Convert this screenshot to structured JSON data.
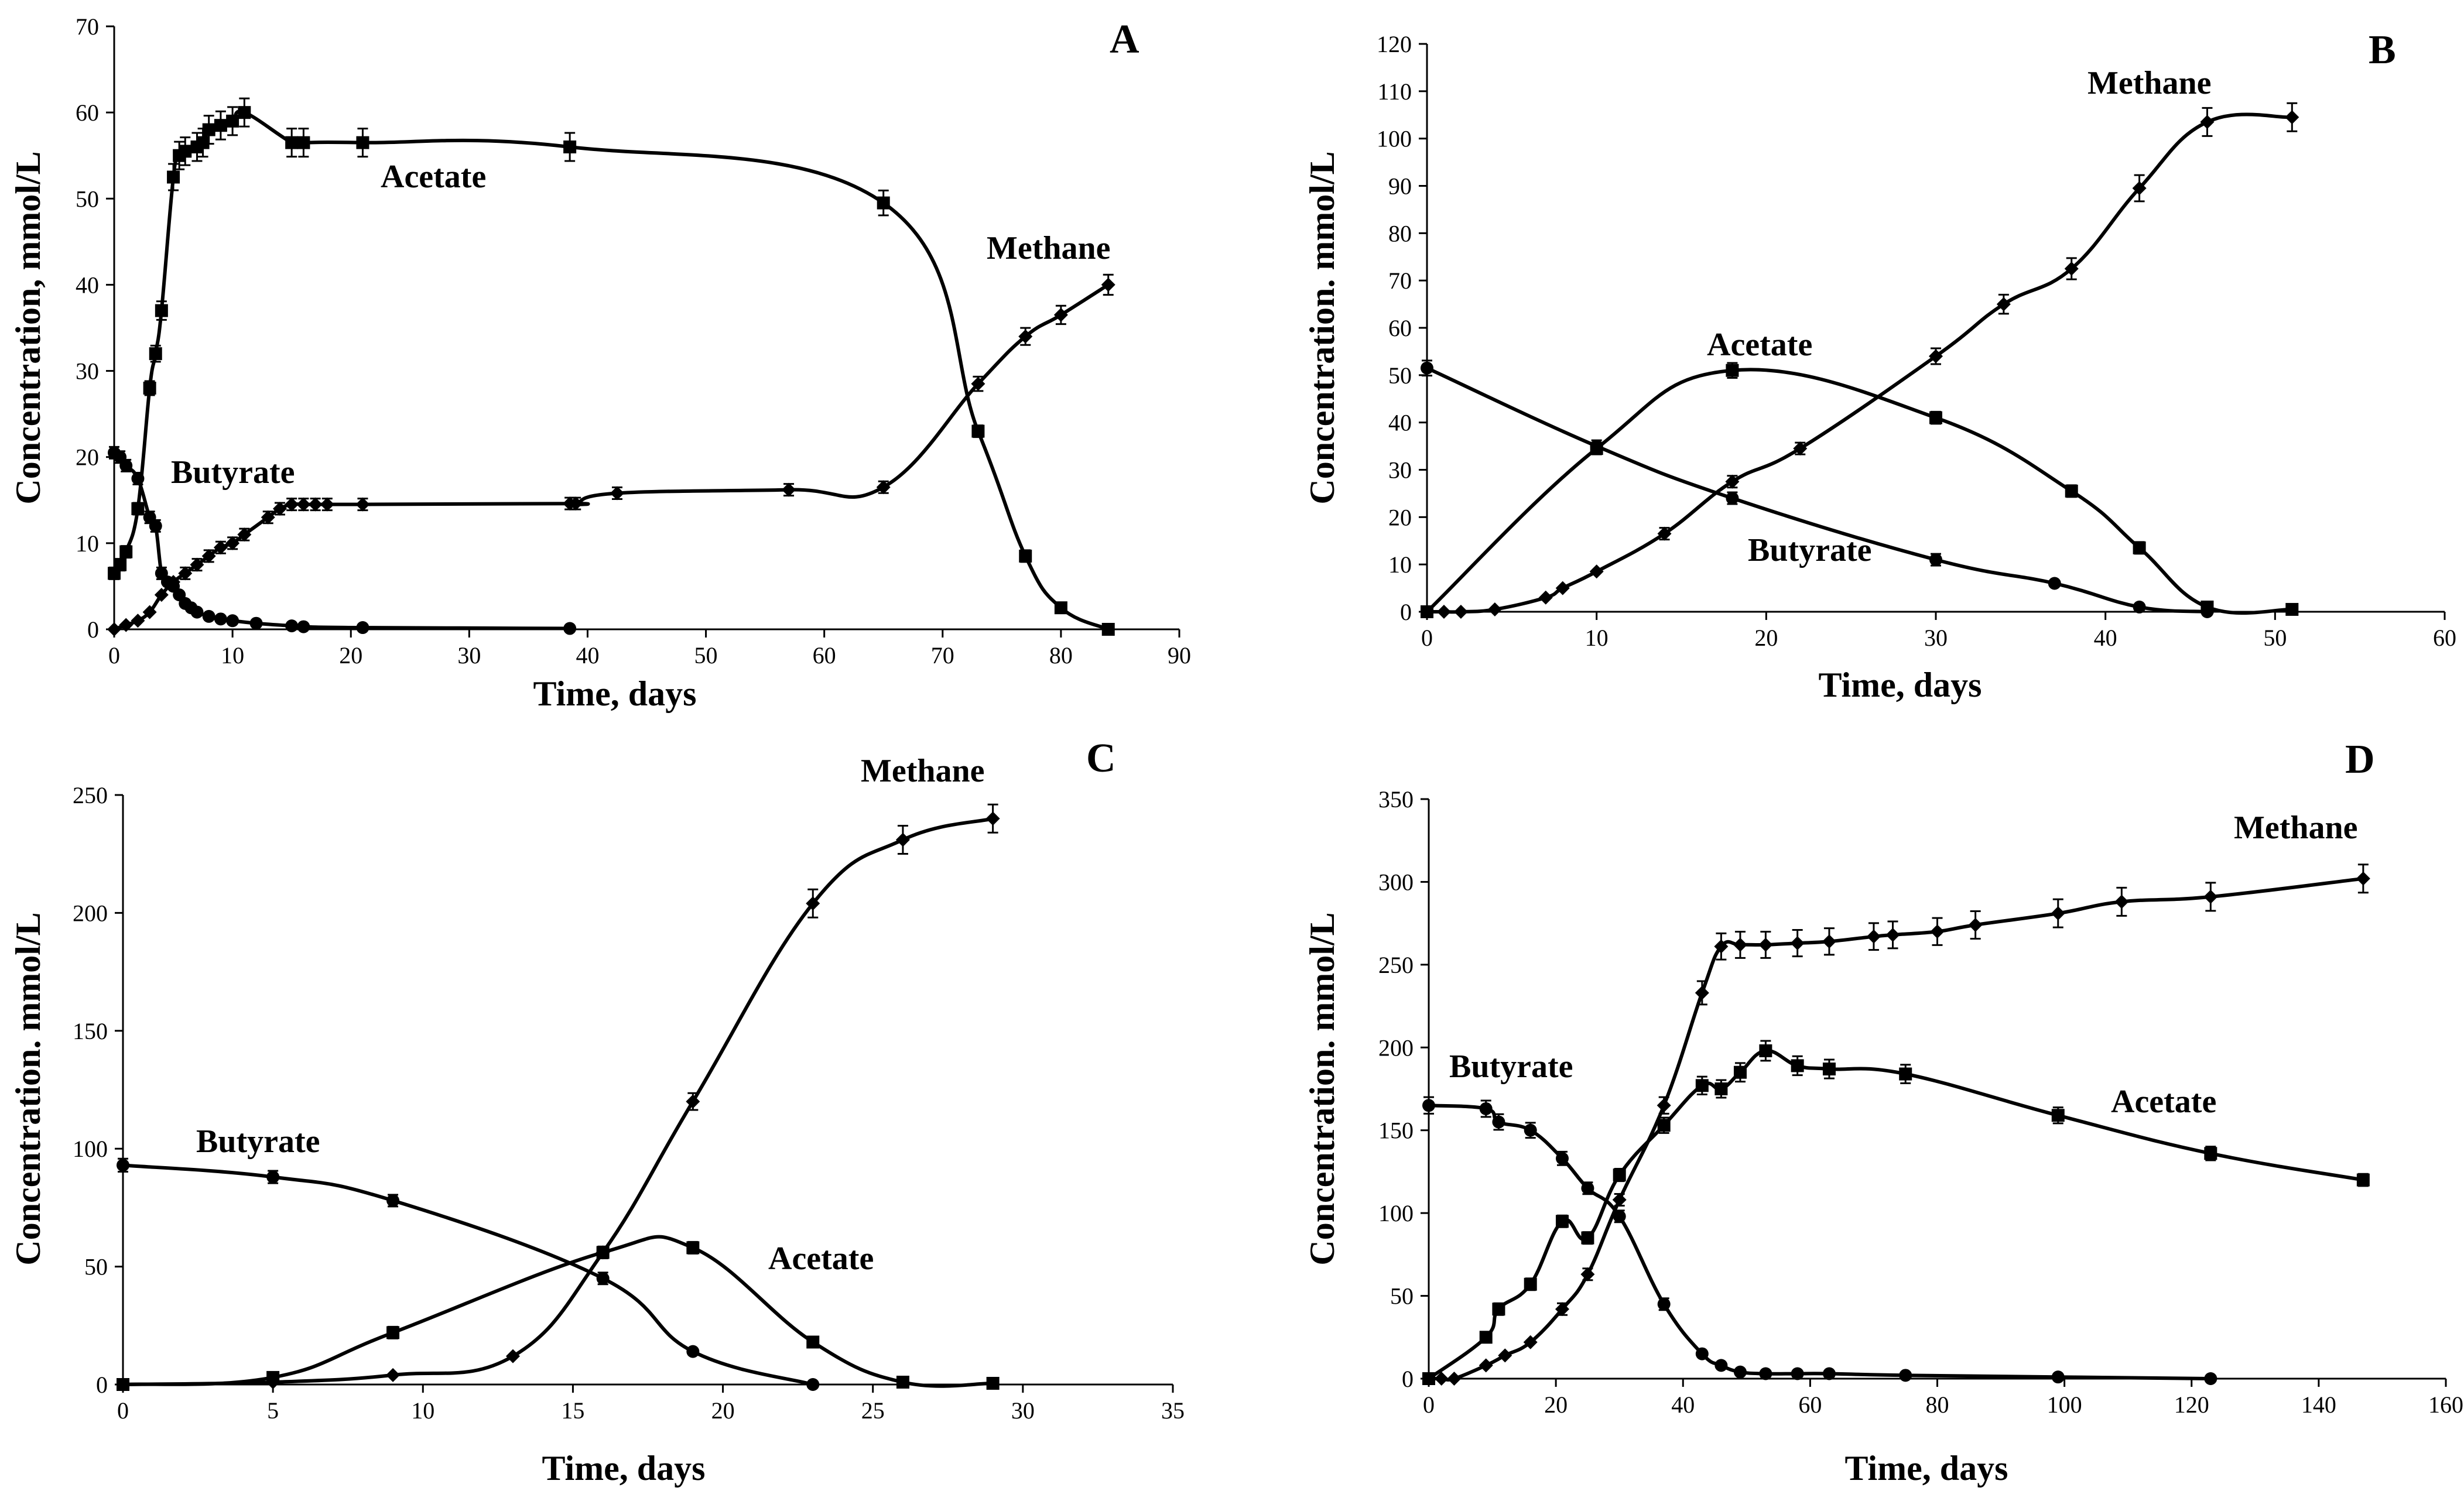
{
  "chart_data": [
    {
      "type": "line",
      "panel": "A",
      "xlabel": "Time, days",
      "ylabel": "Concentration, mmol/L",
      "xlim": [
        0,
        90
      ],
      "ylim": [
        0,
        70
      ],
      "xticks": [
        0,
        10,
        20,
        30,
        40,
        50,
        60,
        70,
        80,
        90
      ],
      "yticks": [
        0,
        10,
        20,
        30,
        40,
        50,
        60,
        70
      ],
      "series": [
        {
          "name": "Acetate",
          "marker": "square",
          "x": [
            0,
            0.5,
            1,
            2,
            3,
            3.5,
            4,
            5,
            5.5,
            6,
            7,
            7.5,
            8,
            9,
            10,
            11,
            15,
            16,
            21,
            38.5,
            65,
            73,
            77,
            80,
            84
          ],
          "y": [
            6.5,
            7.5,
            9,
            14,
            28,
            32,
            37,
            52.5,
            55,
            55.5,
            56,
            56.5,
            58,
            58.5,
            59,
            60,
            56.5,
            56.5,
            56.5,
            56,
            49.5,
            23,
            8.5,
            2.5,
            0
          ]
        },
        {
          "name": "Butyrate",
          "marker": "circle",
          "x": [
            0,
            0.5,
            1,
            2,
            3,
            3.5,
            4,
            4.5,
            5,
            5.5,
            6,
            6.5,
            7,
            8,
            9,
            10,
            12,
            15,
            16,
            21,
            38.5
          ],
          "y": [
            20.5,
            20,
            19,
            17.5,
            13,
            12,
            6.5,
            5.5,
            5,
            4,
            3,
            2.5,
            2,
            1.5,
            1.2,
            1,
            0.7,
            0.4,
            0.3,
            0.2,
            0.1
          ]
        },
        {
          "name": "Methane",
          "marker": "diamond",
          "x": [
            0,
            1,
            2,
            3,
            4,
            5,
            6,
            7,
            8,
            9,
            10,
            11,
            13,
            14,
            15,
            16,
            17,
            18,
            21,
            38.5,
            39,
            42.5,
            57,
            65,
            73,
            77,
            80,
            84
          ],
          "y": [
            0,
            0.5,
            1,
            2,
            4,
            5.5,
            6.5,
            7.5,
            8.5,
            9.5,
            10,
            11,
            13,
            14,
            14.5,
            14.5,
            14.5,
            14.5,
            14.5,
            14.6,
            14.6,
            15.8,
            16.2,
            16.5,
            28.5,
            34,
            36.5,
            40
          ]
        }
      ],
      "labels": [
        "A",
        "Acetate",
        "Butyrate",
        "Methane"
      ]
    },
    {
      "type": "line",
      "panel": "B",
      "xlabel": "Time, days",
      "ylabel": "Concentration. mmol/L",
      "xlim": [
        0,
        60
      ],
      "ylim": [
        0,
        120
      ],
      "xticks": [
        0,
        10,
        20,
        30,
        40,
        50,
        60
      ],
      "yticks": [
        0,
        10,
        20,
        30,
        40,
        50,
        60,
        70,
        80,
        90,
        100,
        110,
        120
      ],
      "series": [
        {
          "name": "Acetate",
          "marker": "square",
          "x": [
            0,
            10,
            18,
            30,
            38,
            42,
            46,
            51
          ],
          "y": [
            0,
            34.5,
            51,
            41,
            25.5,
            13.5,
            1,
            0.5
          ]
        },
        {
          "name": "Butyrate",
          "marker": "circle",
          "x": [
            0,
            10,
            18,
            30,
            37,
            42,
            46
          ],
          "y": [
            51.5,
            35,
            24,
            11,
            6,
            1,
            0
          ]
        },
        {
          "name": "Methane",
          "marker": "diamond",
          "x": [
            0,
            1,
            2,
            4,
            7,
            8,
            10,
            14,
            18,
            22,
            30,
            34,
            38,
            42,
            46,
            51
          ],
          "y": [
            0,
            0,
            0,
            0.5,
            3,
            5,
            8.5,
            16.5,
            27.5,
            34.5,
            54,
            65,
            72.5,
            89.5,
            103.5,
            104.5
          ]
        }
      ],
      "labels": [
        "B",
        "Acetate",
        "Butyrate",
        "Methane"
      ]
    },
    {
      "type": "line",
      "panel": "C",
      "xlabel": "Time, days",
      "ylabel": "Concentration. mmol/L",
      "xlim": [
        0,
        35
      ],
      "ylim": [
        0,
        250
      ],
      "xticks": [
        0,
        5,
        10,
        15,
        20,
        25,
        30,
        35
      ],
      "yticks": [
        0,
        50,
        100,
        150,
        200,
        250
      ],
      "series": [
        {
          "name": "Acetate",
          "marker": "square",
          "x": [
            0,
            5,
            9,
            16,
            19,
            23,
            26,
            29
          ],
          "y": [
            0,
            3,
            22,
            56,
            58,
            18,
            1,
            0.5
          ]
        },
        {
          "name": "Butyrate",
          "marker": "circle",
          "x": [
            0,
            5,
            9,
            16,
            19,
            23
          ],
          "y": [
            93,
            88,
            78,
            45,
            14,
            0
          ]
        },
        {
          "name": "Methane",
          "marker": "diamond",
          "x": [
            0,
            5,
            9,
            13,
            16,
            19,
            23,
            26,
            29
          ],
          "y": [
            0,
            1,
            4,
            12,
            56,
            120,
            204,
            231,
            240
          ]
        }
      ],
      "labels": [
        "C",
        "Acetate",
        "Butyrate",
        "Methane"
      ]
    },
    {
      "type": "line",
      "panel": "D",
      "xlabel": "Time, days",
      "ylabel": "Concentration. mmol/L",
      "xlim": [
        0,
        160
      ],
      "ylim": [
        0,
        350
      ],
      "xticks": [
        0,
        20,
        40,
        60,
        80,
        100,
        120,
        140,
        160
      ],
      "yticks": [
        0,
        50,
        100,
        150,
        200,
        250,
        300,
        350
      ],
      "series": [
        {
          "name": "Acetate",
          "marker": "square",
          "x": [
            0,
            9,
            11,
            16,
            21,
            25,
            30,
            37,
            43,
            46,
            49,
            53,
            58,
            63,
            75,
            99,
            123,
            147
          ],
          "y": [
            0,
            25,
            42,
            57,
            95,
            85,
            123,
            153,
            177,
            175,
            185,
            198,
            189,
            187,
            184,
            159,
            136,
            120
          ]
        },
        {
          "name": "Butyrate",
          "marker": "circle",
          "x": [
            0,
            9,
            11,
            16,
            21,
            25,
            30,
            37,
            43,
            46,
            49,
            53,
            58,
            63,
            75,
            99,
            123
          ],
          "y": [
            165,
            163,
            155,
            150,
            133,
            115,
            98,
            45,
            15,
            8,
            4,
            3,
            3,
            3,
            2,
            1,
            0
          ]
        },
        {
          "name": "Methane",
          "marker": "diamond",
          "x": [
            0,
            2,
            4,
            9,
            12,
            16,
            21,
            25,
            30,
            37,
            43,
            46,
            49,
            53,
            58,
            63,
            70,
            73,
            80,
            86,
            99,
            109,
            123,
            147
          ],
          "y": [
            0,
            0,
            0,
            8,
            14,
            22,
            42,
            63,
            108,
            165,
            233,
            261,
            262,
            262,
            263,
            264,
            267,
            268,
            270,
            274,
            281,
            288,
            291,
            302
          ]
        }
      ],
      "labels": [
        "D",
        "Acetate",
        "Butyrate",
        "Methane"
      ]
    }
  ]
}
